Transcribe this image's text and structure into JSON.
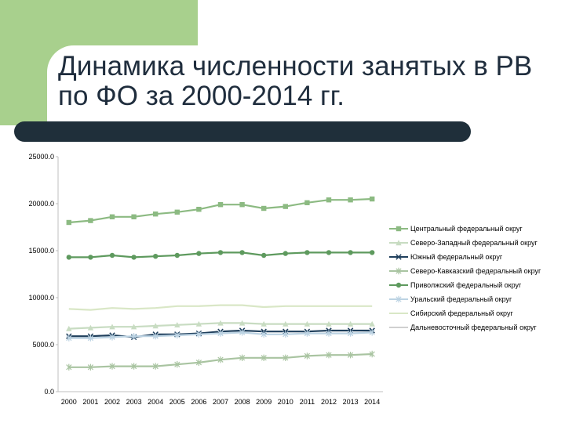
{
  "title": "Динамика численности занятых в РВ  по ФО за 2000-2014 гг.",
  "chart_data": {
    "type": "line",
    "title": "",
    "xlabel": "",
    "ylabel": "",
    "ylim": [
      0,
      25000
    ],
    "yticks": [
      "0.0",
      "5000.0",
      "10000.0",
      "15000.0",
      "20000.0",
      "25000.0"
    ],
    "grid": false,
    "legend_position": "right",
    "categories": [
      "2000",
      "2001",
      "2002",
      "2003",
      "2004",
      "2005",
      "2006",
      "2007",
      "2008",
      "2009",
      "2010",
      "2011",
      "2012",
      "2013",
      "2014"
    ],
    "series": [
      {
        "name": "Центральный федеральный округ",
        "color": "#8cba82",
        "marker": "square",
        "values": [
          18000,
          18200,
          18600,
          18600,
          18900,
          19100,
          19400,
          19900,
          19900,
          19500,
          19700,
          20100,
          20400,
          20400,
          20500
        ]
      },
      {
        "name": "Северо-Западный федеральный округ",
        "color": "#c8dcc2",
        "marker": "triangle",
        "values": [
          6700,
          6800,
          6900,
          6900,
          7000,
          7100,
          7200,
          7300,
          7300,
          7200,
          7200,
          7200,
          7200,
          7200,
          7200
        ]
      },
      {
        "name": "Южный федеральный округ",
        "color": "#1f3f5c",
        "marker": "x",
        "values": [
          5900,
          5900,
          6000,
          5800,
          6100,
          6100,
          6200,
          6400,
          6500,
          6400,
          6400,
          6400,
          6500,
          6500,
          6500
        ]
      },
      {
        "name": "Северо-Кавказский федеральный округ",
        "color": "#a9c4a1",
        "marker": "star",
        "values": [
          2600,
          2600,
          2700,
          2700,
          2700,
          2900,
          3100,
          3400,
          3600,
          3600,
          3600,
          3800,
          3900,
          3900,
          4000
        ]
      },
      {
        "name": "Приволжский федеральный округ",
        "color": "#5e9a5e",
        "marker": "circle",
        "values": [
          14300,
          14300,
          14500,
          14300,
          14400,
          14500,
          14700,
          14800,
          14800,
          14500,
          14700,
          14800,
          14800,
          14800,
          14800
        ]
      },
      {
        "name": "Уральский федеральный округ",
        "color": "#bcd3e3",
        "marker": "star",
        "values": [
          5700,
          5700,
          5800,
          5900,
          5900,
          6000,
          6100,
          6200,
          6300,
          6100,
          6100,
          6200,
          6200,
          6200,
          6300
        ]
      },
      {
        "name": "Сибирский федеральный округ",
        "color": "#d9e7c6",
        "marker": "none",
        "values": [
          8800,
          8700,
          8900,
          8800,
          8900,
          9100,
          9100,
          9200,
          9200,
          9000,
          9100,
          9100,
          9100,
          9100,
          9100
        ]
      },
      {
        "name": "Дальневосточный федеральный округ",
        "color": "#d0d0d0",
        "marker": "none",
        "values": [
          null,
          null,
          null,
          null,
          null,
          null,
          null,
          null,
          null,
          null,
          null,
          null,
          null,
          null,
          null
        ]
      }
    ]
  }
}
